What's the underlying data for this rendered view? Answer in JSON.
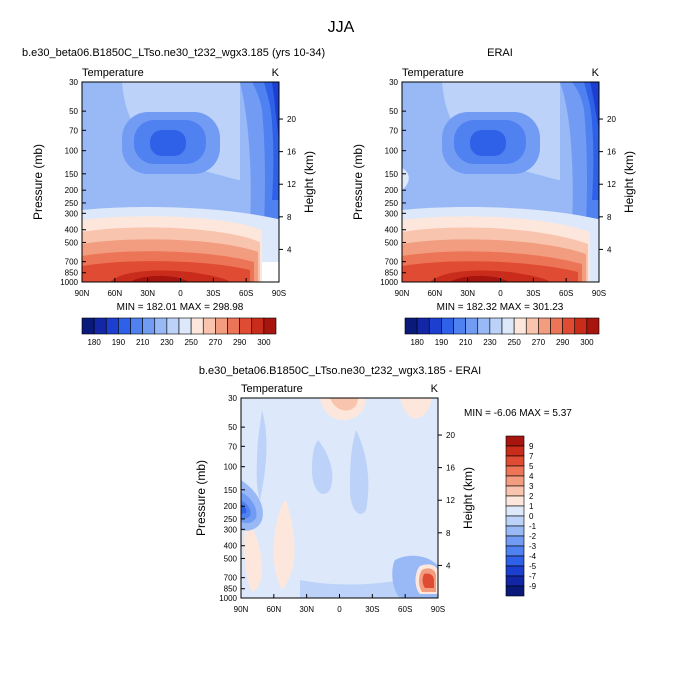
{
  "figure": {
    "title": "JJA"
  },
  "colors": {
    "divergent": [
      "#0a1a7a",
      "#1226a6",
      "#1c3fcf",
      "#2f60e8",
      "#4f81f0",
      "#729cf3",
      "#98b8f6",
      "#bcd2f9",
      "#dde8fb",
      "#fde7dc",
      "#f8c4ae",
      "#f29c80",
      "#ec7558",
      "#e04c33",
      "#c92c1b",
      "#a8150e",
      "#800a06"
    ],
    "warm_core": "#d43a1f"
  },
  "chart_data": [
    {
      "type": "contour",
      "title_left": "b.e30_beta06.B1850C_LTso.ne30_t232_wgx3.185 (yrs 10-34)",
      "variable": "Temperature",
      "units": "K",
      "ylabel": "Pressure (mb)",
      "ylabel_right": "Height (km)",
      "x_ticks": [
        "90N",
        "60N",
        "30N",
        "0",
        "30S",
        "60S",
        "90S"
      ],
      "y_ticks": [
        "30",
        "50",
        "70",
        "100",
        "150",
        "200",
        "250",
        "300",
        "400",
        "500",
        "700",
        "850",
        "1000"
      ],
      "y_right_ticks": [
        "20",
        "16",
        "12",
        "8",
        "4"
      ],
      "min_max": "MIN = 182.01   MAX = 298.98",
      "levels": [
        "180",
        "190",
        "210",
        "230",
        "250",
        "270",
        "290",
        "300"
      ]
    },
    {
      "type": "contour",
      "title_center": "ERAI",
      "variable": "Temperature",
      "units": "K",
      "ylabel": "Pressure (mb)",
      "ylabel_right": "Height (km)",
      "x_ticks": [
        "90N",
        "60N",
        "30N",
        "0",
        "30S",
        "60S",
        "90S"
      ],
      "y_ticks": [
        "30",
        "50",
        "70",
        "100",
        "150",
        "200",
        "250",
        "300",
        "400",
        "500",
        "700",
        "850",
        "1000"
      ],
      "y_right_ticks": [
        "20",
        "16",
        "12",
        "8",
        "4"
      ],
      "min_max": "MIN = 182.32   MAX = 301.23",
      "levels": [
        "180",
        "190",
        "210",
        "230",
        "250",
        "270",
        "290",
        "300"
      ]
    },
    {
      "type": "contour",
      "title_center": "b.e30_beta06.B1850C_LTso.ne30_t232_wgx3.185 - ERAI",
      "variable": "Temperature",
      "units": "K",
      "ylabel": "Pressure (mb)",
      "ylabel_right": "Height (km)",
      "x_ticks": [
        "90N",
        "60N",
        "30N",
        "0",
        "30S",
        "60S",
        "90S"
      ],
      "y_ticks": [
        "30",
        "50",
        "70",
        "100",
        "150",
        "200",
        "250",
        "300",
        "400",
        "500",
        "700",
        "850",
        "1000"
      ],
      "y_right_ticks": [
        "20",
        "16",
        "12",
        "8",
        "4"
      ],
      "min_max": "MIN = -6.06   MAX =  5.37",
      "levels": [
        "9",
        "7",
        "5",
        "4",
        "3",
        "2",
        "1",
        "0",
        "-1",
        "-2",
        "-3",
        "-4",
        "-5",
        "-7",
        "-9"
      ]
    }
  ]
}
